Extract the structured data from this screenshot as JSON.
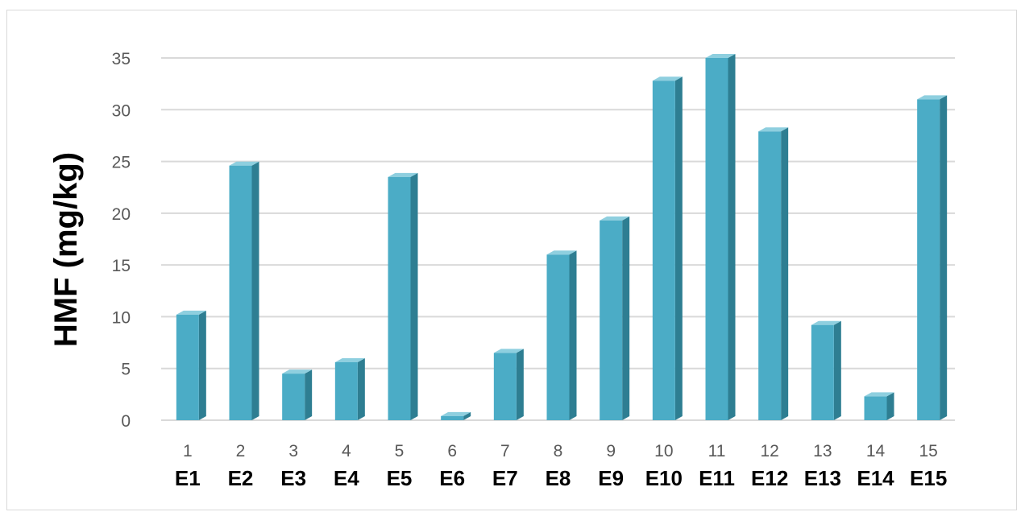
{
  "colors": {
    "bar_front": "#4BACC6",
    "bar_side": "#2E7E92",
    "bar_top": "#8ECFDF",
    "grid": "#d9d9d9"
  },
  "chart_data": {
    "type": "bar",
    "ylabel": "HMF (mg/kg)",
    "xlabel": "",
    "title": "",
    "ylim": [
      0,
      35
    ],
    "yticks": [
      0,
      5,
      10,
      15,
      20,
      25,
      30,
      35
    ],
    "grid": true,
    "legend": "none",
    "index_labels": [
      "1",
      "2",
      "3",
      "4",
      "5",
      "6",
      "7",
      "8",
      "9",
      "10",
      "11",
      "12",
      "13",
      "14",
      "15"
    ],
    "categories": [
      "E1",
      "E2",
      "E3",
      "E4",
      "E5",
      "E6",
      "E7",
      "E8",
      "E9",
      "E10",
      "E11",
      "E12",
      "E13",
      "E14",
      "E15"
    ],
    "values": [
      10.2,
      24.6,
      4.5,
      5.6,
      23.5,
      0.4,
      6.5,
      16.0,
      19.3,
      32.8,
      35.0,
      27.9,
      9.2,
      2.3,
      31.0
    ]
  }
}
